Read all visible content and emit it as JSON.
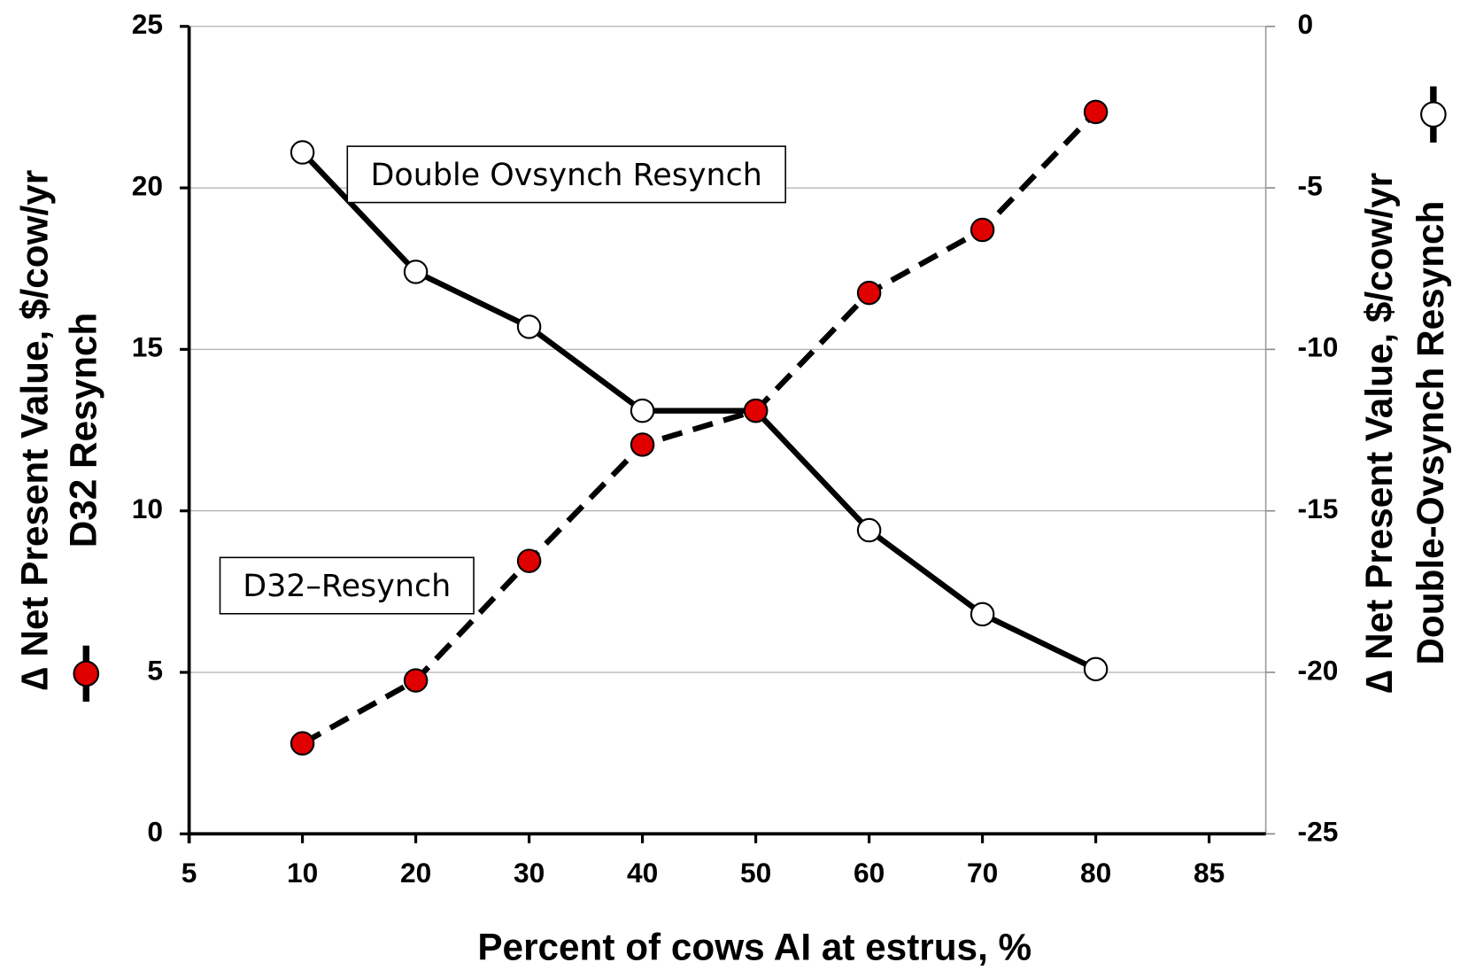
{
  "chart_data": {
    "type": "line",
    "xlabel": "Percent of cows AI at estrus, %",
    "ylabel": [
      "∆ Net Present Value, $/cow/yr",
      "D32 Resynch"
    ],
    "y2label": [
      "∆ Net Present Value, $/cow/yr",
      "Double-Ovsynch Resynch"
    ],
    "categories": [
      "5",
      "10",
      "20",
      "30",
      "40",
      "50",
      "60",
      "70",
      "80",
      "85"
    ],
    "series": [
      {
        "name": "D32–Resynch",
        "color": "#e00000",
        "line_color": "#000000",
        "dash": true,
        "axis": "y",
        "values": [
          null,
          2.8,
          4.75,
          8.45,
          12.05,
          13.1,
          16.75,
          18.7,
          22.35,
          null
        ]
      },
      {
        "name": "Double Ovsynch Resynch",
        "color": "#ffffff",
        "line_color": "#000000",
        "dash": false,
        "axis": "y2",
        "values": [
          null,
          -3.9,
          -7.6,
          -9.3,
          -11.9,
          -11.9,
          -15.6,
          -18.2,
          -19.9,
          null
        ]
      }
    ],
    "ylim": [
      0,
      25
    ],
    "yticks": [
      0,
      5,
      10,
      15,
      20,
      25
    ],
    "y2lim": [
      -25,
      0
    ],
    "y2ticks": [
      -25,
      -20,
      -15,
      -10,
      -5,
      0
    ],
    "grid": true
  }
}
